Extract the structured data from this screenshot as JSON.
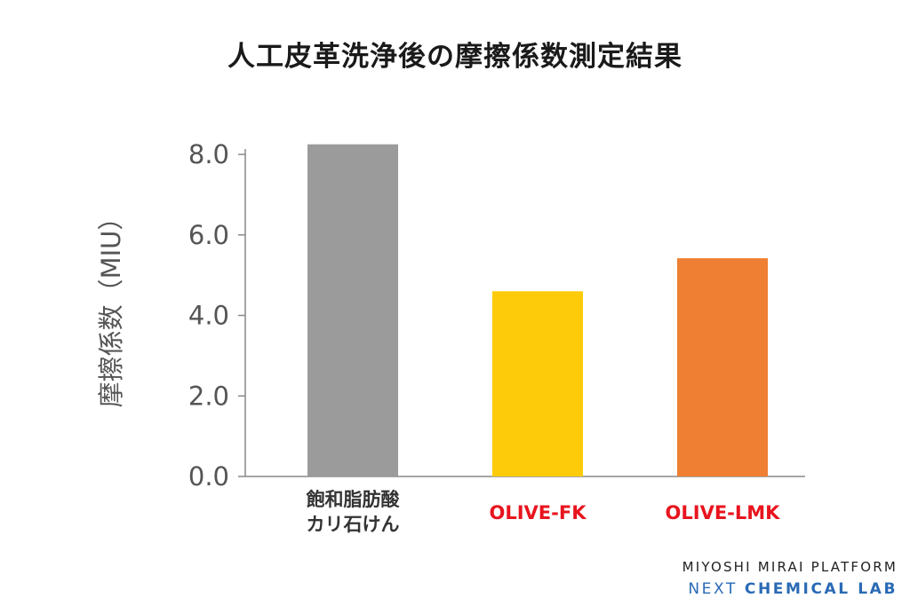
{
  "chart_data": {
    "type": "bar",
    "title": "人工皮革洗浄後の摩擦係数測定結果",
    "ylabel": "摩擦係数（MIU）",
    "xlabel": "",
    "ylim": [
      0,
      8.4
    ],
    "yticks": [
      "0.0",
      "2.0",
      "4.0",
      "6.0",
      "8.0"
    ],
    "ytick_values": [
      0,
      2,
      4,
      6,
      8
    ],
    "grid": false,
    "categories": [
      {
        "label_lines": [
          "飽和脂肪酸",
          "カリ石けん"
        ],
        "label_color": "#333333"
      },
      {
        "label_lines": [
          "OLIVE-FK"
        ],
        "label_color": "#e8141e"
      },
      {
        "label_lines": [
          "OLIVE-LMK"
        ],
        "label_color": "#e8141e"
      }
    ],
    "values": [
      8.25,
      4.6,
      5.42
    ],
    "colors": [
      "#9b9b9b",
      "#fdcb0a",
      "#ee7f33"
    ]
  },
  "footer": {
    "line1": "MIYOSHI MIRAI PLATFORM",
    "line2_part1": "NEXT ",
    "line2_part2": "CHEMICAL LAB"
  }
}
